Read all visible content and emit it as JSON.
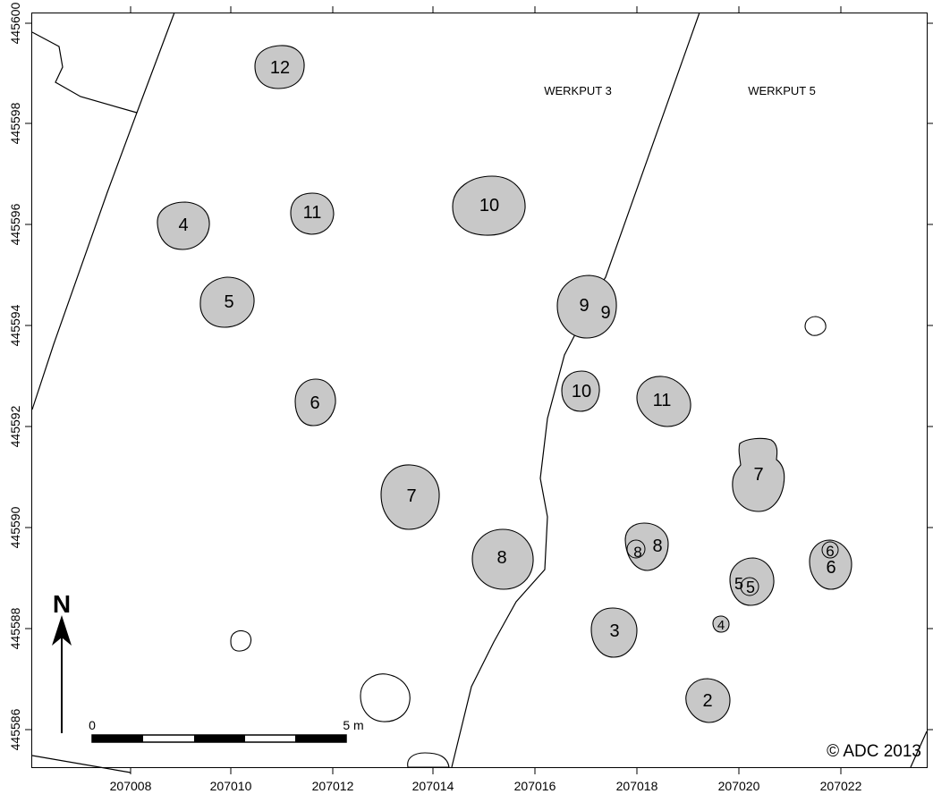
{
  "map": {
    "x_ticks": [
      "207008",
      "207010",
      "207012",
      "207014",
      "207016",
      "207018",
      "207020",
      "207022"
    ],
    "y_ticks": [
      "445600",
      "445598",
      "445596",
      "445594",
      "445592",
      "445590",
      "445588",
      "445586"
    ],
    "trench_labels": [
      "WERKPUT 3",
      "WERKPUT 5"
    ],
    "north_label": "N",
    "scale": {
      "start_label": "0",
      "end_label": "5 m"
    },
    "copyright": "© ADC 2013",
    "feature_fill": "#c8c8c8",
    "line_color": "#000000",
    "features": [
      {
        "id": "12",
        "trench": "WERKPUT 3"
      },
      {
        "id": "4",
        "trench": "WERKPUT 3"
      },
      {
        "id": "11",
        "trench": "WERKPUT 3"
      },
      {
        "id": "10",
        "trench": "WERKPUT 3"
      },
      {
        "id": "5",
        "trench": "WERKPUT 3"
      },
      {
        "id": "9",
        "trench": "WERKPUT 3"
      },
      {
        "id": "9",
        "trench": "WERKPUT 5"
      },
      {
        "id": "6",
        "trench": "WERKPUT 3"
      },
      {
        "id": "10",
        "trench": "WERKPUT 5"
      },
      {
        "id": "11",
        "trench": "WERKPUT 5"
      },
      {
        "id": "7",
        "trench": "WERKPUT 3"
      },
      {
        "id": "7",
        "trench": "WERKPUT 5"
      },
      {
        "id": "8",
        "trench": "WERKPUT 3"
      },
      {
        "id": "8",
        "trench": "WERKPUT 5"
      },
      {
        "id": "8",
        "trench": "WERKPUT 5"
      },
      {
        "id": "6",
        "trench": "WERKPUT 5"
      },
      {
        "id": "6",
        "trench": "WERKPUT 5"
      },
      {
        "id": "5",
        "trench": "WERKPUT 5"
      },
      {
        "id": "5",
        "trench": "WERKPUT 5"
      },
      {
        "id": "3",
        "trench": "WERKPUT 5"
      },
      {
        "id": "4",
        "trench": "WERKPUT 5"
      },
      {
        "id": "2",
        "trench": "WERKPUT 5"
      }
    ]
  }
}
